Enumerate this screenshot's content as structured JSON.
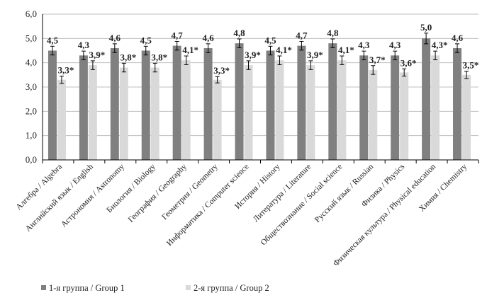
{
  "chart_data": {
    "type": "bar",
    "categories": [
      "Алгебра / Algebra",
      "Английский язык / English",
      "Астрономия / Astronomy",
      "Биология / Biology",
      "География / Geography",
      "Геометрия / Geometry",
      "Информатика / Computer science",
      "История / History",
      "Литература / Literature",
      "Обществознание / Social science",
      "Русский язык / Russian",
      "Физика / Physics",
      "Физическая культура / Physical education",
      "Химия / Chemistry"
    ],
    "series": [
      {
        "name": "1-я группа / Group 1",
        "color": "#808080",
        "values": [
          4.5,
          4.3,
          4.6,
          4.5,
          4.7,
          4.6,
          4.8,
          4.5,
          4.7,
          4.8,
          4.3,
          4.3,
          5.0,
          4.6
        ],
        "labels": [
          "4,5",
          "4,3",
          "4,6",
          "4,5",
          "4,7",
          "4,6",
          "4,8",
          "4,5",
          "4,7",
          "4,8",
          "4,3",
          "4,3",
          "5,0",
          "4,6"
        ],
        "errors": [
          0.18,
          0.18,
          0.18,
          0.18,
          0.18,
          0.18,
          0.18,
          0.18,
          0.18,
          0.18,
          0.18,
          0.18,
          0.22,
          0.18
        ]
      },
      {
        "name": "2-я группа / Group 2",
        "color": "#d9d9d9",
        "values": [
          3.3,
          3.9,
          3.8,
          3.8,
          4.1,
          3.3,
          3.9,
          4.1,
          3.9,
          4.1,
          3.7,
          3.6,
          4.3,
          3.5
        ],
        "labels": [
          "3,3*",
          "3,9*",
          "3,8*",
          "3,8*",
          "4,1*",
          "3,3*",
          "3,9*",
          "4,1*",
          "3,9*",
          "4,1*",
          "3,7*",
          "3,6*",
          "4,3*",
          "3,5*"
        ],
        "errors": [
          0.15,
          0.18,
          0.18,
          0.18,
          0.18,
          0.13,
          0.18,
          0.18,
          0.18,
          0.18,
          0.18,
          0.15,
          0.18,
          0.15
        ]
      }
    ],
    "ylim": [
      0,
      6
    ],
    "yticks": [
      "0,0",
      "1,0",
      "2,0",
      "3,0",
      "4,0",
      "5,0",
      "6,0"
    ],
    "grid": true,
    "legend": "bottom"
  }
}
